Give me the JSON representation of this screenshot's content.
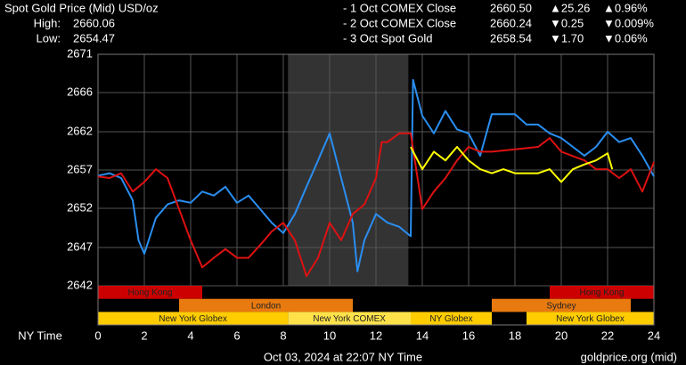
{
  "chart_data": {
    "type": "line",
    "title": "Spot Gold Price (Mid) USD/oz",
    "stats": [
      {
        "label": "High:",
        "value": 2660.06
      },
      {
        "label": "Low:",
        "value": 2654.47
      }
    ],
    "x_axis_label": "NY Time",
    "xlim": [
      0,
      24
    ],
    "xticks": [
      0,
      2,
      4,
      6,
      8,
      10,
      12,
      14,
      16,
      18,
      20,
      22,
      24
    ],
    "ylim": [
      2642,
      2671
    ],
    "yticks": [
      {
        "value": 2642,
        "label": "2642"
      },
      {
        "value": 2646.8,
        "label": "2647"
      },
      {
        "value": 2651.7,
        "label": "2652"
      },
      {
        "value": 2656.5,
        "label": "2657"
      },
      {
        "value": 2661.3,
        "label": "2662"
      },
      {
        "value": 2666.2,
        "label": "2666"
      },
      {
        "value": 2671,
        "label": "2671"
      }
    ],
    "grid": true,
    "shaded": [
      8.2,
      13.4
    ],
    "series": [
      {
        "name": "- 1 Oct COMEX Close",
        "color": "#2a8ef0",
        "last": {
          "value": 2660.5,
          "label": "2660.50"
        },
        "change": "▲25.26",
        "percent": "▲0.96%",
        "direction": "up",
        "x": [
          0,
          0.5,
          1,
          1.5,
          1.75,
          2,
          2.5,
          3,
          3.5,
          4,
          4.5,
          5,
          5.5,
          6,
          6.5,
          7,
          7.5,
          8,
          8.5,
          9,
          9.5,
          10,
          10.5,
          11,
          11.2,
          11.5,
          12,
          12.5,
          13,
          13.5,
          13.6,
          14,
          14.5,
          15,
          15.5,
          16,
          16.5,
          17,
          18,
          18.5,
          19,
          19.5,
          20,
          20.5,
          21,
          21.5,
          22,
          22.5,
          23,
          23.5,
          24
        ],
        "values": [
          2655.8,
          2656.1,
          2655.5,
          2652.7,
          2647.7,
          2646.0,
          2650.5,
          2652.2,
          2652.7,
          2652.4,
          2653.8,
          2653.3,
          2654.4,
          2652.4,
          2653.3,
          2651.6,
          2649.9,
          2648.6,
          2651.0,
          2654.4,
          2657.7,
          2661.1,
          2655.5,
          2649.9,
          2643.8,
          2647.7,
          2651.0,
          2649.9,
          2649.4,
          2648.2,
          2667.8,
          2663.3,
          2661.1,
          2663.9,
          2661.6,
          2661.1,
          2658.3,
          2663.5,
          2663.5,
          2662.2,
          2662.2,
          2661.1,
          2660.5,
          2659.4,
          2658.3,
          2659.4,
          2661.3,
          2660.0,
          2660.5,
          2658.3,
          2655.7
        ]
      },
      {
        "name": "- 2 Oct COMEX Close",
        "color": "#dd1111",
        "last": {
          "value": 2660.24,
          "label": "2660.24"
        },
        "change": "▼0.25",
        "percent": "▼0.009%",
        "direction": "down",
        "x": [
          0,
          0.5,
          1,
          1.5,
          2,
          2.5,
          3,
          3.5,
          4,
          4.5,
          5,
          5.5,
          6,
          6.5,
          7,
          7.5,
          8,
          8.5,
          9,
          9.5,
          10,
          10.5,
          11,
          11.5,
          12,
          12.25,
          12.5,
          13,
          13.5,
          14,
          14.5,
          15,
          15.5,
          16,
          16.5,
          17,
          18,
          19,
          19.5,
          20,
          21,
          21.5,
          22,
          22.5,
          23,
          23.5,
          24
        ],
        "values": [
          2655.7,
          2655.5,
          2656.1,
          2653.8,
          2655.0,
          2656.6,
          2655.5,
          2651.6,
          2647.7,
          2644.3,
          2645.5,
          2646.6,
          2645.5,
          2645.5,
          2647.1,
          2648.8,
          2649.9,
          2647.7,
          2643.2,
          2645.5,
          2649.9,
          2647.7,
          2651.0,
          2652.2,
          2655.5,
          2660.0,
          2660.0,
          2661.1,
          2661.1,
          2651.6,
          2653.8,
          2655.5,
          2657.7,
          2659.4,
          2658.8,
          2658.8,
          2659.1,
          2659.4,
          2660.5,
          2658.8,
          2657.7,
          2656.6,
          2656.6,
          2655.5,
          2656.6,
          2653.8,
          2657.5
        ]
      },
      {
        "name": "- 3 Oct Spot Gold",
        "color": "#ffff00",
        "last": {
          "value": 2658.54,
          "label": "2658.54"
        },
        "change": "▼1.70",
        "percent": "▼0.06%",
        "direction": "down",
        "x": [
          13.5,
          14,
          14.5,
          15,
          15.5,
          16,
          16.5,
          17,
          17.5,
          18,
          19,
          19.5,
          20,
          20.5,
          21,
          21.5,
          22,
          22.2
        ],
        "values": [
          2659.4,
          2656.6,
          2658.8,
          2657.7,
          2659.4,
          2657.7,
          2656.6,
          2656.1,
          2656.6,
          2656.1,
          2656.1,
          2656.6,
          2655.0,
          2656.6,
          2657.2,
          2657.7,
          2658.6,
          2656.6
        ]
      }
    ],
    "sessions": [
      {
        "name": "Hong Kong",
        "start": 0,
        "end": 4.5,
        "row": 0,
        "color": "#cc0000"
      },
      {
        "name": "Hong Kong",
        "start": 19.5,
        "end": 24,
        "row": 0,
        "color": "#cc0000"
      },
      {
        "name": "London",
        "start": 3.5,
        "end": 11,
        "row": 1,
        "color": "#e87a10"
      },
      {
        "name": "Sydney",
        "start": 17,
        "end": 23,
        "row": 1,
        "color": "#e87a10"
      },
      {
        "name": "New York Globex",
        "start": 0,
        "end": 8.2,
        "row": 2,
        "color": "#ffcc00"
      },
      {
        "name": "New York COMEX",
        "start": 8.2,
        "end": 13.5,
        "row": 2,
        "color": "#ffe24a"
      },
      {
        "name": "NY Globex",
        "start": 13.5,
        "end": 17,
        "row": 2,
        "color": "#ffcc00"
      },
      {
        "name": "New York Globex",
        "start": 18.5,
        "end": 24,
        "row": 2,
        "color": "#ffcc00"
      }
    ],
    "timestamp": "Oct 03, 2024 at 22:07 NY Time",
    "source": "goldprice.org (mid)"
  }
}
